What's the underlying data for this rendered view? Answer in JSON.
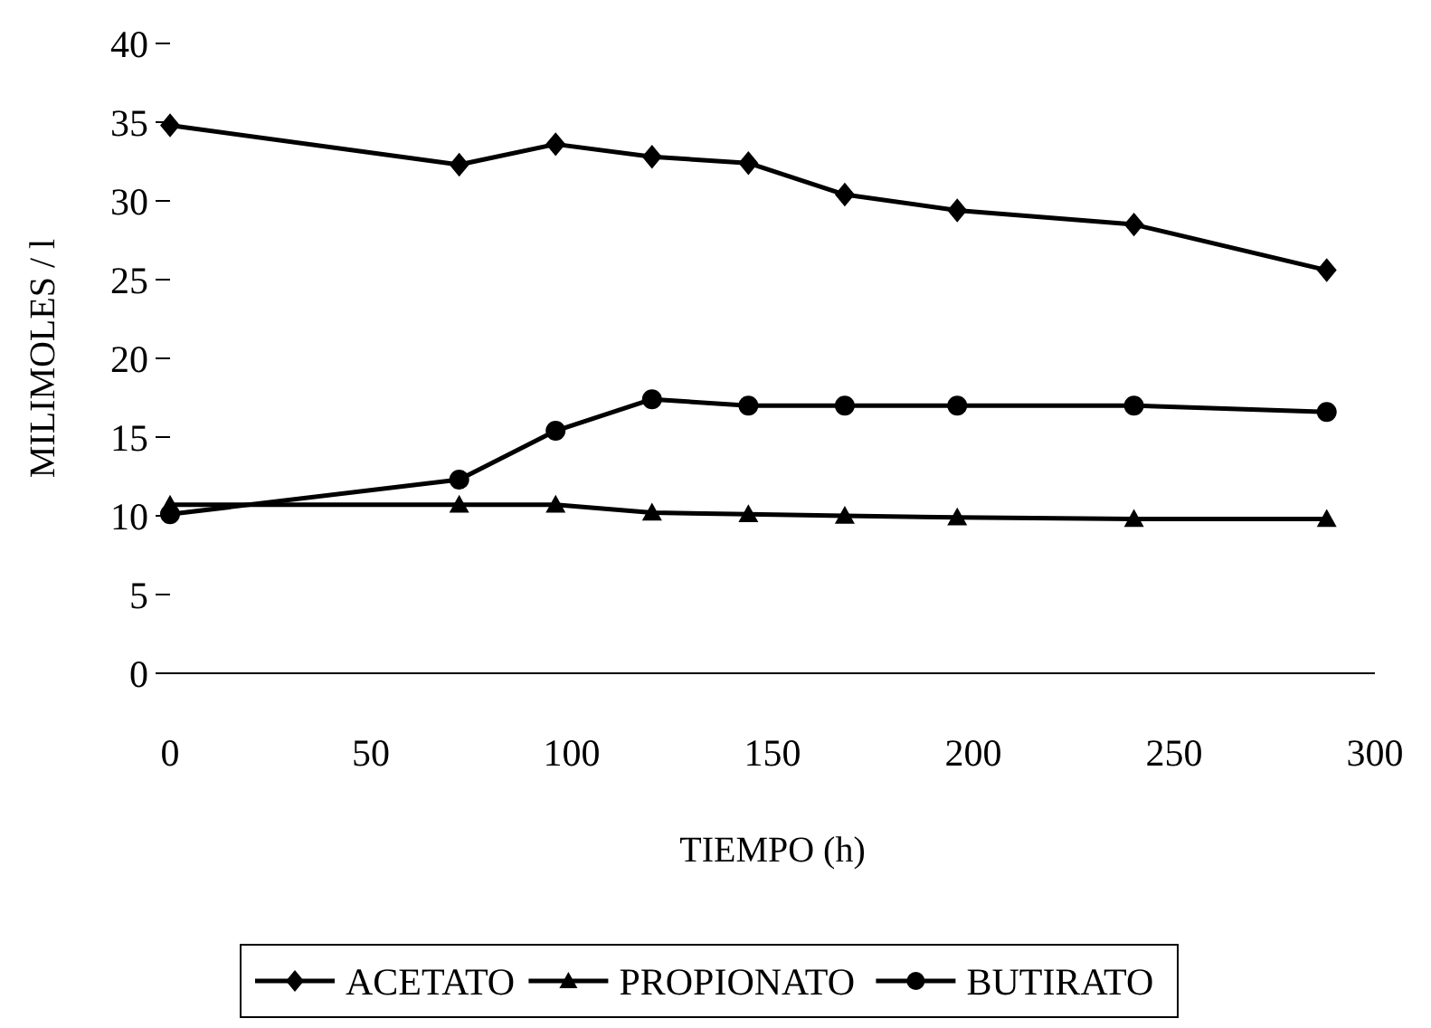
{
  "chart_data": {
    "type": "line",
    "xlabel": "TIEMPO (h)",
    "ylabel": "MILIMOLES / l",
    "x": [
      0,
      72,
      96,
      120,
      144,
      168,
      196,
      240,
      288
    ],
    "series": [
      {
        "name": "ACETATO",
        "color": "#000000",
        "marker": "diamond",
        "values": [
          34.8,
          32.3,
          33.6,
          32.8,
          32.4,
          30.4,
          29.4,
          28.5,
          25.6
        ]
      },
      {
        "name": "PROPIONATO",
        "color": "#000000",
        "marker": "triangle",
        "values": [
          10.7,
          10.7,
          10.7,
          10.2,
          10.1,
          10.0,
          9.9,
          9.8,
          9.8
        ]
      },
      {
        "name": "BUTIRATO",
        "color": "#000000",
        "marker": "circle",
        "values": [
          10.1,
          12.3,
          15.4,
          17.4,
          17.0,
          17.0,
          17.0,
          17.0,
          16.6
        ]
      }
    ],
    "xlim": [
      0,
      300
    ],
    "xticks": [
      0,
      50,
      100,
      150,
      200,
      250,
      300
    ],
    "ylim": [
      0,
      40
    ],
    "yticks": [
      0,
      5,
      10,
      15,
      20,
      25,
      30,
      35,
      40
    ],
    "legend": "bottom",
    "grid": false,
    "line_style": "solid"
  }
}
